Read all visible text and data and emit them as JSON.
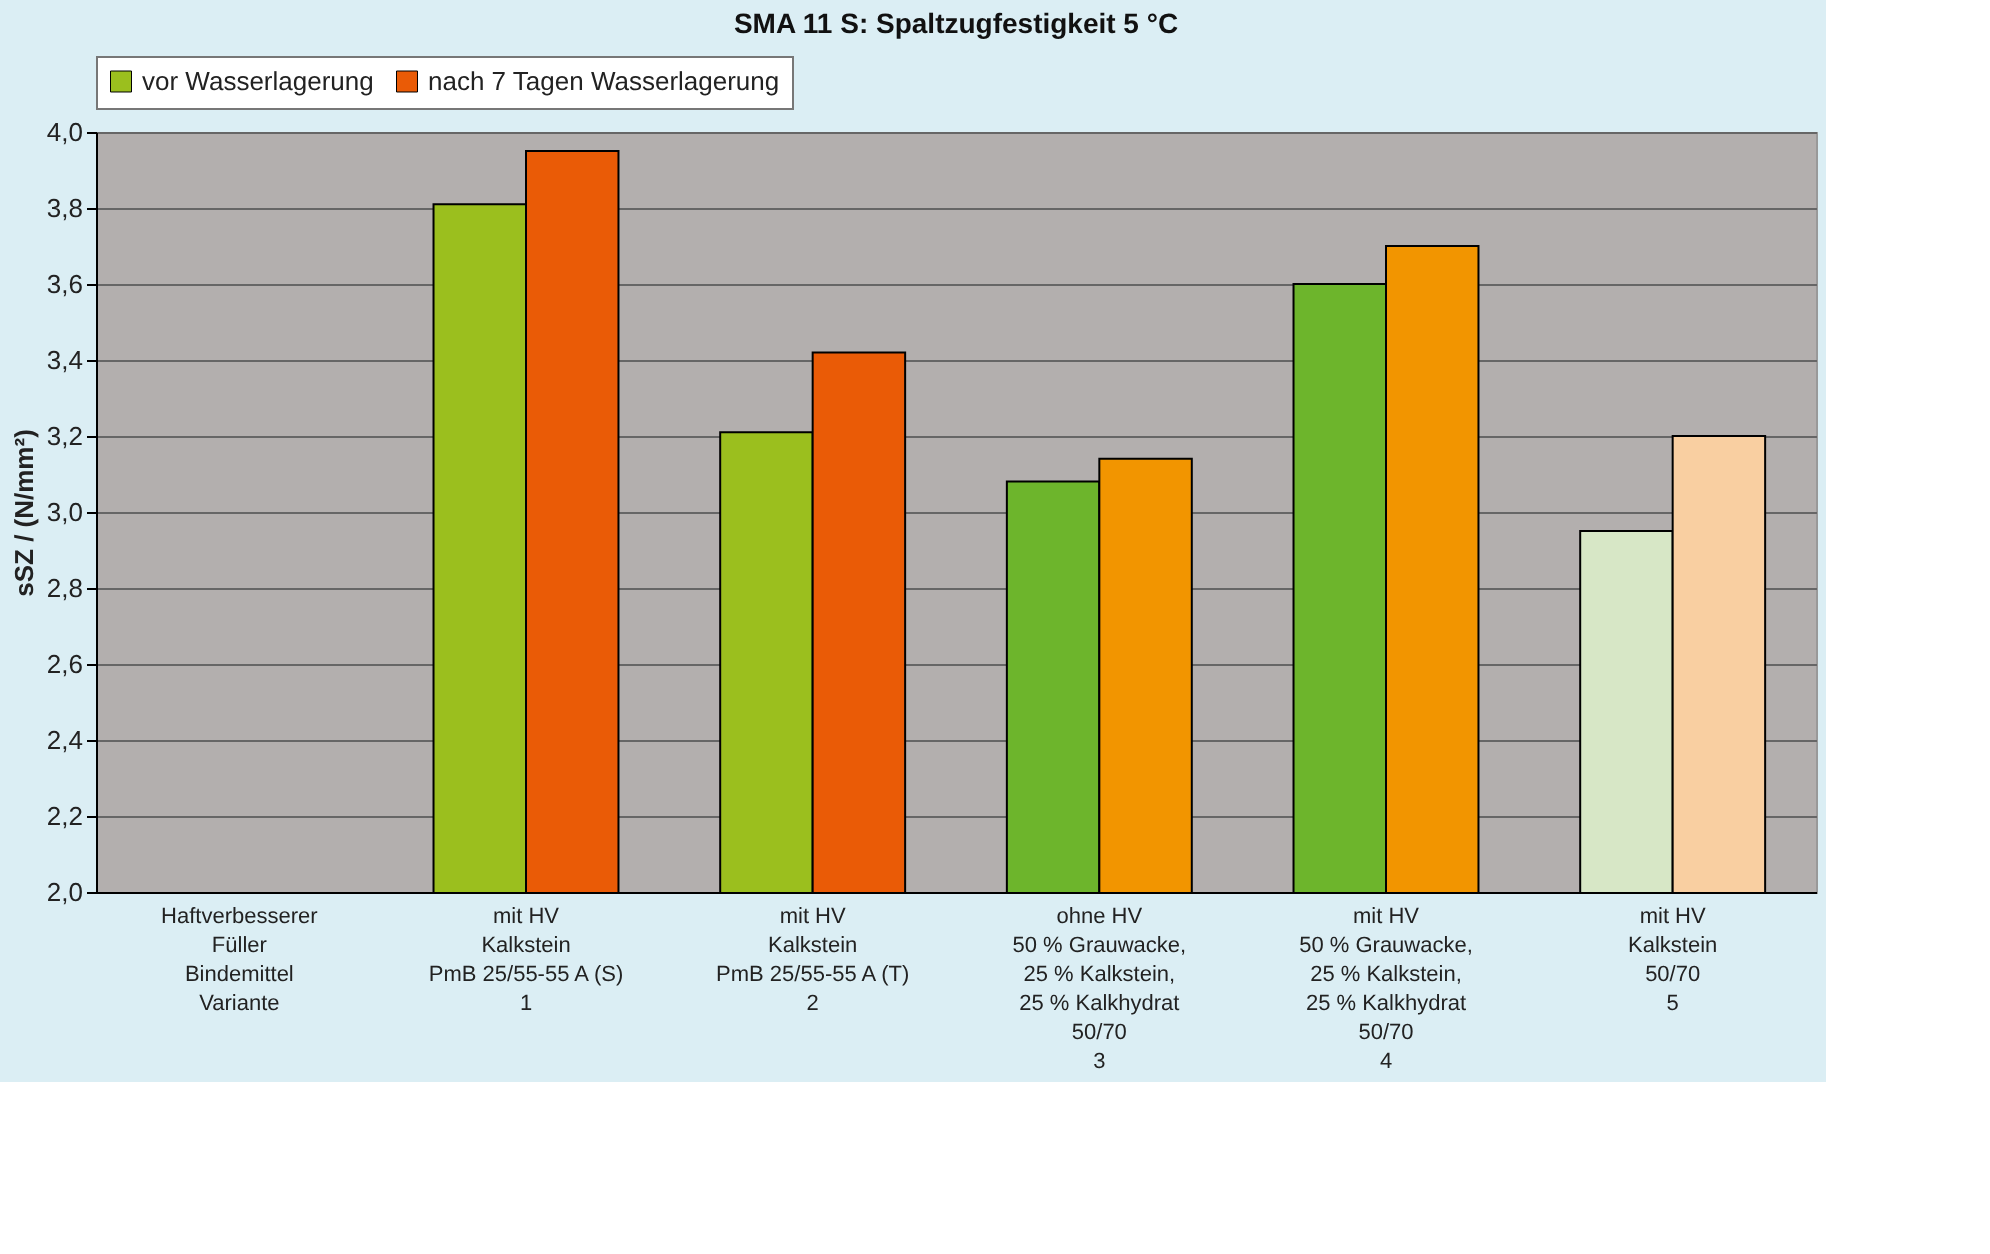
{
  "chart_data": {
    "type": "bar",
    "title": "SMA 11 S: Spaltzugfestigkeit 5 °C",
    "ylabel": "sSZ / (N/mm²)",
    "categories": [
      "Haftverbesserer\nFüller\n\n\nBindemittel\nVariante",
      "mit HV\nKalkstein\n\n\nPmB 25/55-55 A (S)\n1",
      "mit HV\nKalkstein\n\n\nPmB 25/55-55 A (T)\n2",
      "ohne HV\n50 % Grauwacke,\n25 % Kalkstein,\n25 % Kalkhydrat\n50/70\n3",
      "mit HV\n50 % Grauwacke,\n25 % Kalkstein,\n25 % Kalkhydrat\n50/70\n4",
      "mit HV\nKalkstein\n\n\n50/70\n5"
    ],
    "series": [
      {
        "name": "vor Wasserlagerung",
        "color": "#9bbf1e",
        "colors": [
          "#9bbf1e",
          "#9bbf1e",
          "#9bbf1e",
          "#6db52c",
          "#6db52c",
          "#d7e7c6"
        ],
        "values": [
          null,
          3.81,
          3.21,
          3.08,
          3.6,
          2.95
        ]
      },
      {
        "name": "nach 7 Tagen Wasserlagerung",
        "color": "#ea5b06",
        "colors": [
          "#ea5b06",
          "#ea5b06",
          "#ea5b06",
          "#f29500",
          "#f29500",
          "#f9cfa1"
        ],
        "values": [
          null,
          3.95,
          3.42,
          3.14,
          3.7,
          3.2
        ]
      }
    ],
    "ylim": [
      2.0,
      4.0
    ],
    "yticks": [
      {
        "value": 2.0,
        "label": "2,0"
      },
      {
        "value": 2.2,
        "label": "2,2"
      },
      {
        "value": 2.4,
        "label": "2,4"
      },
      {
        "value": 2.6,
        "label": "2,6"
      },
      {
        "value": 2.8,
        "label": "2,8"
      },
      {
        "value": 3.0,
        "label": "3,0"
      },
      {
        "value": 3.2,
        "label": "3,2"
      },
      {
        "value": 3.4,
        "label": "3,4"
      },
      {
        "value": 3.6,
        "label": "3,6"
      },
      {
        "value": 3.8,
        "label": "3,8"
      },
      {
        "value": 4.0,
        "label": "4,0"
      }
    ],
    "grid": "y",
    "legend": "top"
  }
}
